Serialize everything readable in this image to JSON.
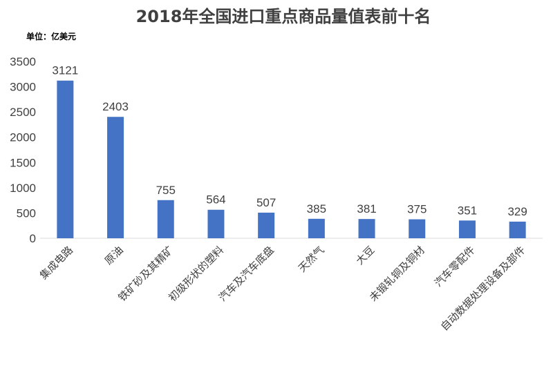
{
  "chart_data": {
    "type": "bar",
    "title": "2018年全国进口重点商品量值表前十名",
    "unit_label": "单位：亿美元",
    "categories": [
      "集成电路",
      "原油",
      "铁矿砂及其精矿",
      "初级形状的塑料",
      "汽车及汽车底盘",
      "天然气",
      "大豆",
      "未锻轧铜及铜材",
      "汽车零配件",
      "自动数据处理设备及部件"
    ],
    "values": [
      3121,
      2403,
      755,
      564,
      507,
      385,
      381,
      375,
      351,
      329
    ],
    "data_labels": [
      "3121",
      "2403",
      "755",
      "564",
      "507",
      "385",
      "381",
      "375",
      "351",
      "329"
    ],
    "ylim": [
      0,
      3500
    ],
    "yticks": [
      "0",
      "500",
      "1000",
      "1500",
      "2000",
      "2500",
      "3000",
      "3500"
    ],
    "grid": false,
    "legend": "none",
    "bar_color": "#4472C4"
  }
}
